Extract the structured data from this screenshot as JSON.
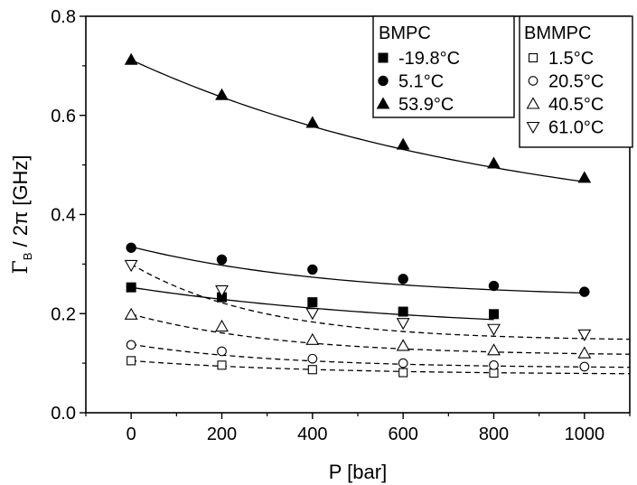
{
  "chart_data": {
    "type": "scatter",
    "xlabel": "P [bar]",
    "ylabel": {
      "main": "Γ",
      "sub": "B",
      "rest": " / 2π [GHz]"
    },
    "xlim": [
      -100,
      1100
    ],
    "ylim": [
      0,
      0.8
    ],
    "xticks": [
      0,
      200,
      400,
      600,
      800,
      1000
    ],
    "yticks": [
      0.0,
      0.2,
      0.4,
      0.6,
      0.8
    ],
    "xtick_labels": [
      "0",
      "200",
      "400",
      "600",
      "800",
      "1000"
    ],
    "ytick_labels": [
      "0.0",
      "0.2",
      "0.4",
      "0.6",
      "0.8"
    ],
    "grid": false,
    "legends": [
      {
        "title": "BMPC",
        "placement": "top-center",
        "entries": [
          "-19.8°C",
          "5.1°C",
          "53.9°C"
        ]
      },
      {
        "title": "BMMPC",
        "placement": "top-right",
        "entries": [
          "1.5°C",
          "20.5°C",
          "40.5°C",
          "61.0°C"
        ]
      }
    ],
    "series": [
      {
        "name": "-19.8°C",
        "group": "BMPC",
        "marker": "filled-square",
        "line": "solid",
        "x": [
          0,
          200,
          400,
          600,
          800
        ],
        "y": [
          0.253,
          0.233,
          0.223,
          0.204,
          0.199
        ],
        "fit": {
          "a": 0.16,
          "b": 0.093,
          "k": 0.0015,
          "x_range": [
            0,
            800
          ]
        }
      },
      {
        "name": "5.1°C",
        "group": "BMPC",
        "marker": "filled-circle",
        "line": "solid",
        "x": [
          0,
          200,
          400,
          600,
          800,
          1000
        ],
        "y": [
          0.333,
          0.309,
          0.289,
          0.27,
          0.256,
          0.244
        ],
        "fit": {
          "a": 0.23,
          "b": 0.105,
          "k": 0.0022,
          "x_range": [
            0,
            1000
          ]
        }
      },
      {
        "name": "53.9°C",
        "group": "BMPC",
        "marker": "filled-triangle-up",
        "line": "solid",
        "x": [
          0,
          200,
          400,
          600,
          800,
          1000
        ],
        "y": [
          0.712,
          0.641,
          0.585,
          0.541,
          0.503,
          0.474
        ],
        "fit": {
          "a": 0.36,
          "b": 0.352,
          "k": 0.0012,
          "x_range": [
            0,
            1000
          ]
        }
      },
      {
        "name": "1.5°C",
        "group": "BMMPC",
        "marker": "open-square",
        "line": "dashed",
        "x": [
          0,
          200,
          400,
          600,
          800
        ],
        "y": [
          0.105,
          0.096,
          0.087,
          0.081,
          0.08
        ],
        "fit": {
          "a": 0.077,
          "b": 0.028,
          "k": 0.0025,
          "x_range": [
            0,
            1100
          ]
        }
      },
      {
        "name": "20.5°C",
        "group": "BMMPC",
        "marker": "open-circle",
        "line": "dashed",
        "x": [
          0,
          200,
          400,
          600,
          800,
          1000
        ],
        "y": [
          0.137,
          0.124,
          0.109,
          0.1,
          0.096,
          0.093
        ],
        "fit": {
          "a": 0.09,
          "b": 0.048,
          "k": 0.003,
          "x_range": [
            0,
            1100
          ]
        }
      },
      {
        "name": "40.5°C",
        "group": "BMMPC",
        "marker": "open-triangle-up",
        "line": "dashed",
        "x": [
          0,
          200,
          400,
          600,
          800,
          1000
        ],
        "y": [
          0.198,
          0.174,
          0.147,
          0.135,
          0.126,
          0.12
        ],
        "fit": {
          "a": 0.115,
          "b": 0.084,
          "k": 0.003,
          "x_range": [
            0,
            1100
          ]
        }
      },
      {
        "name": "61.0°C",
        "group": "BMMPC",
        "marker": "open-triangle-down",
        "line": "dashed",
        "x": [
          0,
          200,
          400,
          600,
          800,
          1000
        ],
        "y": [
          0.298,
          0.247,
          0.201,
          0.181,
          0.169,
          0.158
        ],
        "fit": {
          "a": 0.145,
          "b": 0.155,
          "k": 0.0035,
          "x_range": [
            0,
            1100
          ]
        }
      }
    ]
  }
}
